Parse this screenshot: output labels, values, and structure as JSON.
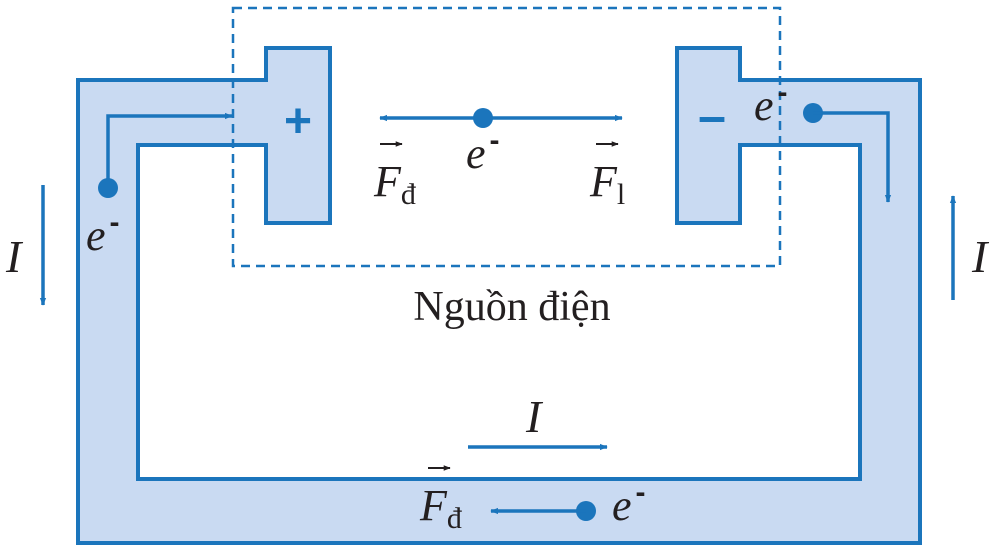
{
  "figure": {
    "colors": {
      "stroke": "#1b75bc",
      "fill": "#c9daf2",
      "text": "#231f20",
      "background": "#ffffff"
    },
    "source": {
      "label": "Nguồn điện",
      "positive_sign": "+",
      "negative_sign": "–"
    },
    "force_in_source": {
      "electric_force": {
        "symbol": "F",
        "subscript": "đ"
      },
      "electron": {
        "symbol": "e",
        "superscript": "-"
      },
      "foreign_force": {
        "symbol": "F",
        "subscript": "l"
      }
    },
    "wire_labels": {
      "left_current": "I",
      "right_current": "I",
      "bottom_current": "I",
      "left_electron": {
        "symbol": "e",
        "superscript": "-"
      },
      "right_electron": {
        "symbol": "e",
        "superscript": "-"
      },
      "bottom_electron": {
        "symbol": "e",
        "superscript": "-"
      },
      "bottom_force": {
        "symbol": "F",
        "subscript": "đ"
      }
    }
  }
}
